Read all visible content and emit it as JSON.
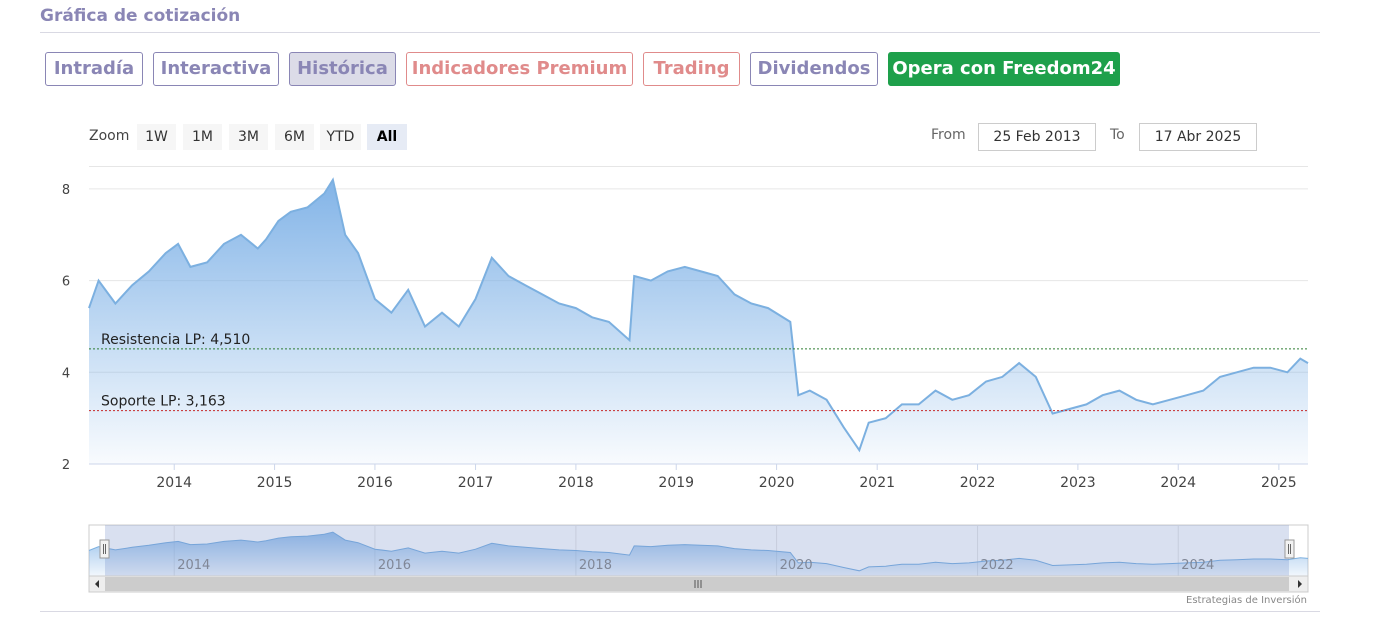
{
  "section_title": "Gráfica de cotización",
  "tabs": {
    "intradia": "Intradía",
    "interactiva": "Interactiva",
    "historica": "Histórica",
    "premium": "Indicadores Premium",
    "trading": "Trading",
    "dividendos": "Dividendos",
    "freedom": "Opera con Freedom24"
  },
  "zoom": {
    "label": "Zoom",
    "buttons": [
      "1W",
      "1M",
      "3M",
      "6M",
      "YTD",
      "All"
    ],
    "active": "All"
  },
  "range": {
    "from_label": "From",
    "from_value": "25 Feb 2013",
    "to_label": "To",
    "to_value": "17 Abr 2025"
  },
  "credit": "Estrategias de Inversión",
  "colors": {
    "line": "#7cb0e0",
    "area_top": "#7cb0e6",
    "resistance": "#2e7d32",
    "support": "#c62828",
    "freedom_button": "#1ea04b",
    "tab_purple": "#8a86b5",
    "tab_red": "#e08b8b"
  },
  "chart_data": {
    "type": "area",
    "xlim": [
      "2013-02-25",
      "2025-04-17"
    ],
    "ylim": [
      2,
      8.5
    ],
    "yticks": [
      2,
      4,
      6,
      8
    ],
    "xticks": [
      "2014",
      "2015",
      "2016",
      "2017",
      "2018",
      "2019",
      "2020",
      "2021",
      "2022",
      "2023",
      "2024",
      "2025"
    ],
    "navigator_ticks": [
      "2014",
      "2016",
      "2018",
      "2020",
      "2022",
      "2024"
    ],
    "grid": true,
    "series": [
      {
        "x": [
          "2013-02-25",
          "2013-04-01",
          "2013-06-01",
          "2013-08-01",
          "2013-10-01",
          "2013-12-01",
          "2014-01-15",
          "2014-03-01",
          "2014-05-01",
          "2014-07-01",
          "2014-09-01",
          "2014-11-01",
          "2014-12-01",
          "2015-01-15",
          "2015-03-01",
          "2015-05-01",
          "2015-07-01",
          "2015-08-01",
          "2015-09-15",
          "2015-11-01",
          "2016-01-01",
          "2016-03-01",
          "2016-05-01",
          "2016-07-01",
          "2016-09-01",
          "2016-11-01",
          "2017-01-01",
          "2017-03-01",
          "2017-05-01",
          "2017-07-01",
          "2017-09-01",
          "2017-11-01",
          "2018-01-01",
          "2018-03-01",
          "2018-05-01",
          "2018-07-15",
          "2018-08-01",
          "2018-10-01",
          "2018-12-01",
          "2019-02-01",
          "2019-04-01",
          "2019-06-01",
          "2019-08-01",
          "2019-10-01",
          "2019-12-01",
          "2020-02-20",
          "2020-03-20",
          "2020-05-01",
          "2020-07-01",
          "2020-09-01",
          "2020-10-28",
          "2020-12-01",
          "2021-02-01",
          "2021-04-01",
          "2021-06-01",
          "2021-08-01",
          "2021-10-01",
          "2021-12-01",
          "2022-02-01",
          "2022-04-01",
          "2022-06-01",
          "2022-08-01",
          "2022-10-01",
          "2022-12-01",
          "2023-02-01",
          "2023-04-01",
          "2023-06-01",
          "2023-08-01",
          "2023-10-01",
          "2023-12-01",
          "2024-02-01",
          "2024-04-01",
          "2024-06-01",
          "2024-08-01",
          "2024-10-01",
          "2024-12-01",
          "2025-02-01",
          "2025-03-20",
          "2025-04-17"
        ],
        "values": [
          5.4,
          6.0,
          5.5,
          5.9,
          6.2,
          6.6,
          6.8,
          6.3,
          6.4,
          6.8,
          7.0,
          6.7,
          6.9,
          7.3,
          7.5,
          7.6,
          7.9,
          8.2,
          7.0,
          6.6,
          5.6,
          5.3,
          5.8,
          5.0,
          5.3,
          5.0,
          5.6,
          6.5,
          6.1,
          5.9,
          5.7,
          5.5,
          5.4,
          5.2,
          5.1,
          4.7,
          6.1,
          6.0,
          6.2,
          6.3,
          6.2,
          6.1,
          5.7,
          5.5,
          5.4,
          5.1,
          3.5,
          3.6,
          3.4,
          2.8,
          2.3,
          2.9,
          3.0,
          3.3,
          3.3,
          3.6,
          3.4,
          3.5,
          3.8,
          3.9,
          4.2,
          3.9,
          3.1,
          3.2,
          3.3,
          3.5,
          3.6,
          3.4,
          3.3,
          3.4,
          3.5,
          3.6,
          3.9,
          4.0,
          4.1,
          4.1,
          4.0,
          4.3,
          4.2
        ]
      }
    ],
    "annotations": [
      {
        "label": "Resistencia LP: 4,510",
        "value": 4.51
      },
      {
        "label": "Soporte LP: 3,163",
        "value": 3.163
      }
    ]
  }
}
